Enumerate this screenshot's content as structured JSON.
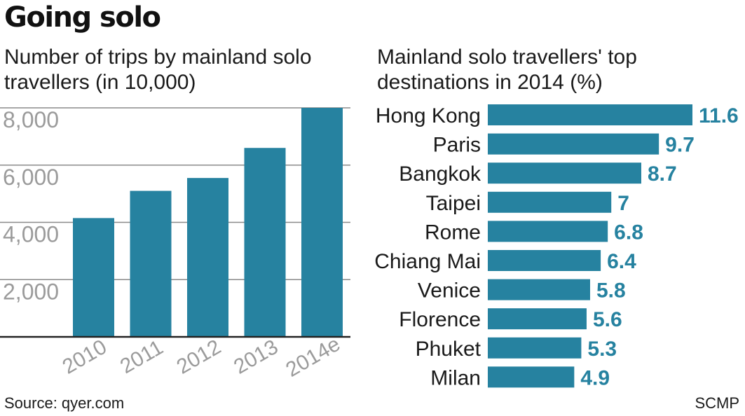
{
  "title": "Going solo",
  "left_subtitle": "Number of trips by mainland solo travellers (in 10,000)",
  "right_subtitle": "Mainland solo travellers' top destinations in 2014 (%)",
  "source": "Source: qyer.com",
  "credit": "SCMP",
  "colors": {
    "bar": "#2682a0",
    "value_label": "#2682a0",
    "grid": "#8a8a8a",
    "axis": "#222222",
    "tick": "#9b9b9b"
  },
  "chart_data": [
    {
      "type": "bar",
      "title": "Number of trips by mainland solo travellers (in 10,000)",
      "categories": [
        "2010",
        "2011",
        "2012",
        "2013",
        "2014e"
      ],
      "values": [
        4150,
        5100,
        5550,
        6600,
        8000
      ],
      "ylim": [
        0,
        8000
      ],
      "yticks": [
        2000,
        4000,
        6000,
        8000
      ],
      "ytick_labels": [
        "2,000",
        "4,000",
        "6,000",
        "8,000"
      ],
      "grid": true
    },
    {
      "type": "bar",
      "orientation": "horizontal",
      "title": "Mainland solo travellers' top destinations in 2014 (%)",
      "categories": [
        "Hong Kong",
        "Paris",
        "Bangkok",
        "Taipei",
        "Rome",
        "Chiang Mai",
        "Venice",
        "Florence",
        "Phuket",
        "Milan"
      ],
      "values": [
        11.6,
        9.7,
        8.7,
        7,
        6.8,
        6.4,
        5.8,
        5.6,
        5.3,
        4.9
      ],
      "value_labels": [
        "11.6",
        "9.7",
        "8.7",
        "7",
        "6.8",
        "6.4",
        "5.8",
        "5.6",
        "5.3",
        "4.9"
      ]
    }
  ]
}
